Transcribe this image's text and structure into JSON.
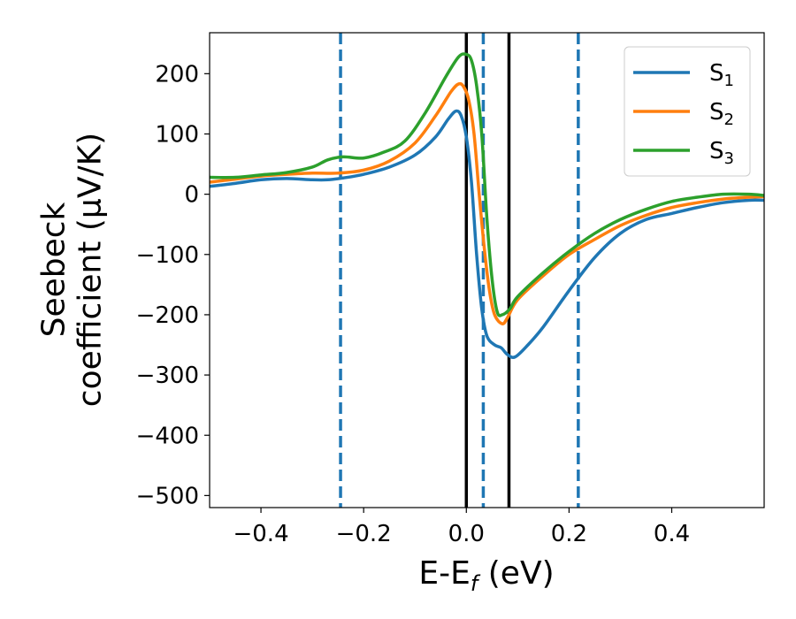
{
  "chart_data": {
    "type": "line",
    "xlabel": "E-E",
    "xlabel_sub": "f",
    "xlabel_unit": " (eV)",
    "ylabel_line1": "Seebeck",
    "ylabel_line2": "coefficient  (μV/K)",
    "xlim": [
      -0.5,
      0.58
    ],
    "ylim": [
      -520,
      268
    ],
    "xticks": [
      -0.4,
      -0.2,
      0.0,
      0.2,
      0.4
    ],
    "xtick_labels": [
      "−0.4",
      "−0.2",
      "0.0",
      "0.2",
      "0.4"
    ],
    "yticks": [
      200,
      100,
      0,
      -100,
      -200,
      -300,
      -400,
      -500
    ],
    "ytick_labels": [
      "200",
      "100",
      "0",
      "−100",
      "−200",
      "−300",
      "−400",
      "−500"
    ],
    "grid": false,
    "legend_position": "top-right",
    "series": [
      {
        "name": "S",
        "subscript": "1",
        "color": "#1f77b4",
        "points": [
          [
            -0.5,
            13
          ],
          [
            -0.45,
            18
          ],
          [
            -0.4,
            24
          ],
          [
            -0.35,
            26
          ],
          [
            -0.3,
            24
          ],
          [
            -0.27,
            24
          ],
          [
            -0.24,
            27
          ],
          [
            -0.2,
            33
          ],
          [
            -0.15,
            45
          ],
          [
            -0.1,
            65
          ],
          [
            -0.06,
            95
          ],
          [
            -0.035,
            125
          ],
          [
            -0.02,
            138
          ],
          [
            -0.01,
            130
          ],
          [
            0.0,
            95
          ],
          [
            0.01,
            20
          ],
          [
            0.02,
            -100
          ],
          [
            0.03,
            -190
          ],
          [
            0.04,
            -235
          ],
          [
            0.055,
            -250
          ],
          [
            0.068,
            -255
          ],
          [
            0.08,
            -266
          ],
          [
            0.095,
            -270
          ],
          [
            0.12,
            -250
          ],
          [
            0.15,
            -220
          ],
          [
            0.2,
            -160
          ],
          [
            0.25,
            -105
          ],
          [
            0.3,
            -65
          ],
          [
            0.35,
            -42
          ],
          [
            0.4,
            -32
          ],
          [
            0.45,
            -22
          ],
          [
            0.5,
            -14
          ],
          [
            0.55,
            -10
          ],
          [
            0.58,
            -10
          ]
        ]
      },
      {
        "name": "S",
        "subscript": "2",
        "color": "#ff7f0e",
        "points": [
          [
            -0.5,
            20
          ],
          [
            -0.45,
            25
          ],
          [
            -0.4,
            30
          ],
          [
            -0.35,
            33
          ],
          [
            -0.3,
            35
          ],
          [
            -0.25,
            35
          ],
          [
            -0.2,
            40
          ],
          [
            -0.15,
            55
          ],
          [
            -0.1,
            85
          ],
          [
            -0.06,
            130
          ],
          [
            -0.03,
            170
          ],
          [
            -0.015,
            183
          ],
          [
            -0.005,
            178
          ],
          [
            0.005,
            155
          ],
          [
            0.015,
            100
          ],
          [
            0.025,
            0
          ],
          [
            0.035,
            -90
          ],
          [
            0.045,
            -160
          ],
          [
            0.055,
            -200
          ],
          [
            0.07,
            -215
          ],
          [
            0.08,
            -205
          ],
          [
            0.1,
            -175
          ],
          [
            0.15,
            -135
          ],
          [
            0.2,
            -100
          ],
          [
            0.25,
            -75
          ],
          [
            0.3,
            -52
          ],
          [
            0.35,
            -35
          ],
          [
            0.4,
            -22
          ],
          [
            0.45,
            -14
          ],
          [
            0.5,
            -8
          ],
          [
            0.55,
            -5
          ],
          [
            0.58,
            -4
          ]
        ]
      },
      {
        "name": "S",
        "subscript": "3",
        "color": "#2ca02c",
        "points": [
          [
            -0.5,
            28
          ],
          [
            -0.45,
            28
          ],
          [
            -0.4,
            32
          ],
          [
            -0.35,
            36
          ],
          [
            -0.3,
            45
          ],
          [
            -0.27,
            57
          ],
          [
            -0.24,
            62
          ],
          [
            -0.2,
            60
          ],
          [
            -0.16,
            70
          ],
          [
            -0.12,
            88
          ],
          [
            -0.08,
            135
          ],
          [
            -0.04,
            195
          ],
          [
            -0.015,
            228
          ],
          [
            0.0,
            232
          ],
          [
            0.01,
            222
          ],
          [
            0.02,
            180
          ],
          [
            0.03,
            100
          ],
          [
            0.04,
            -40
          ],
          [
            0.05,
            -140
          ],
          [
            0.06,
            -195
          ],
          [
            0.07,
            -200
          ],
          [
            0.085,
            -190
          ],
          [
            0.1,
            -170
          ],
          [
            0.15,
            -130
          ],
          [
            0.2,
            -95
          ],
          [
            0.25,
            -65
          ],
          [
            0.3,
            -42
          ],
          [
            0.35,
            -25
          ],
          [
            0.4,
            -12
          ],
          [
            0.45,
            -5
          ],
          [
            0.5,
            0
          ],
          [
            0.55,
            0
          ],
          [
            0.58,
            -2
          ]
        ]
      }
    ],
    "vlines": [
      {
        "x": -0.245,
        "style": "dashed",
        "color": "#1f77b4"
      },
      {
        "x": 0.0,
        "style": "solid",
        "color": "#000000"
      },
      {
        "x": 0.033,
        "style": "dashed",
        "color": "#1f77b4"
      },
      {
        "x": 0.083,
        "style": "solid",
        "color": "#000000"
      },
      {
        "x": 0.218,
        "style": "dashed",
        "color": "#1f77b4"
      }
    ]
  }
}
